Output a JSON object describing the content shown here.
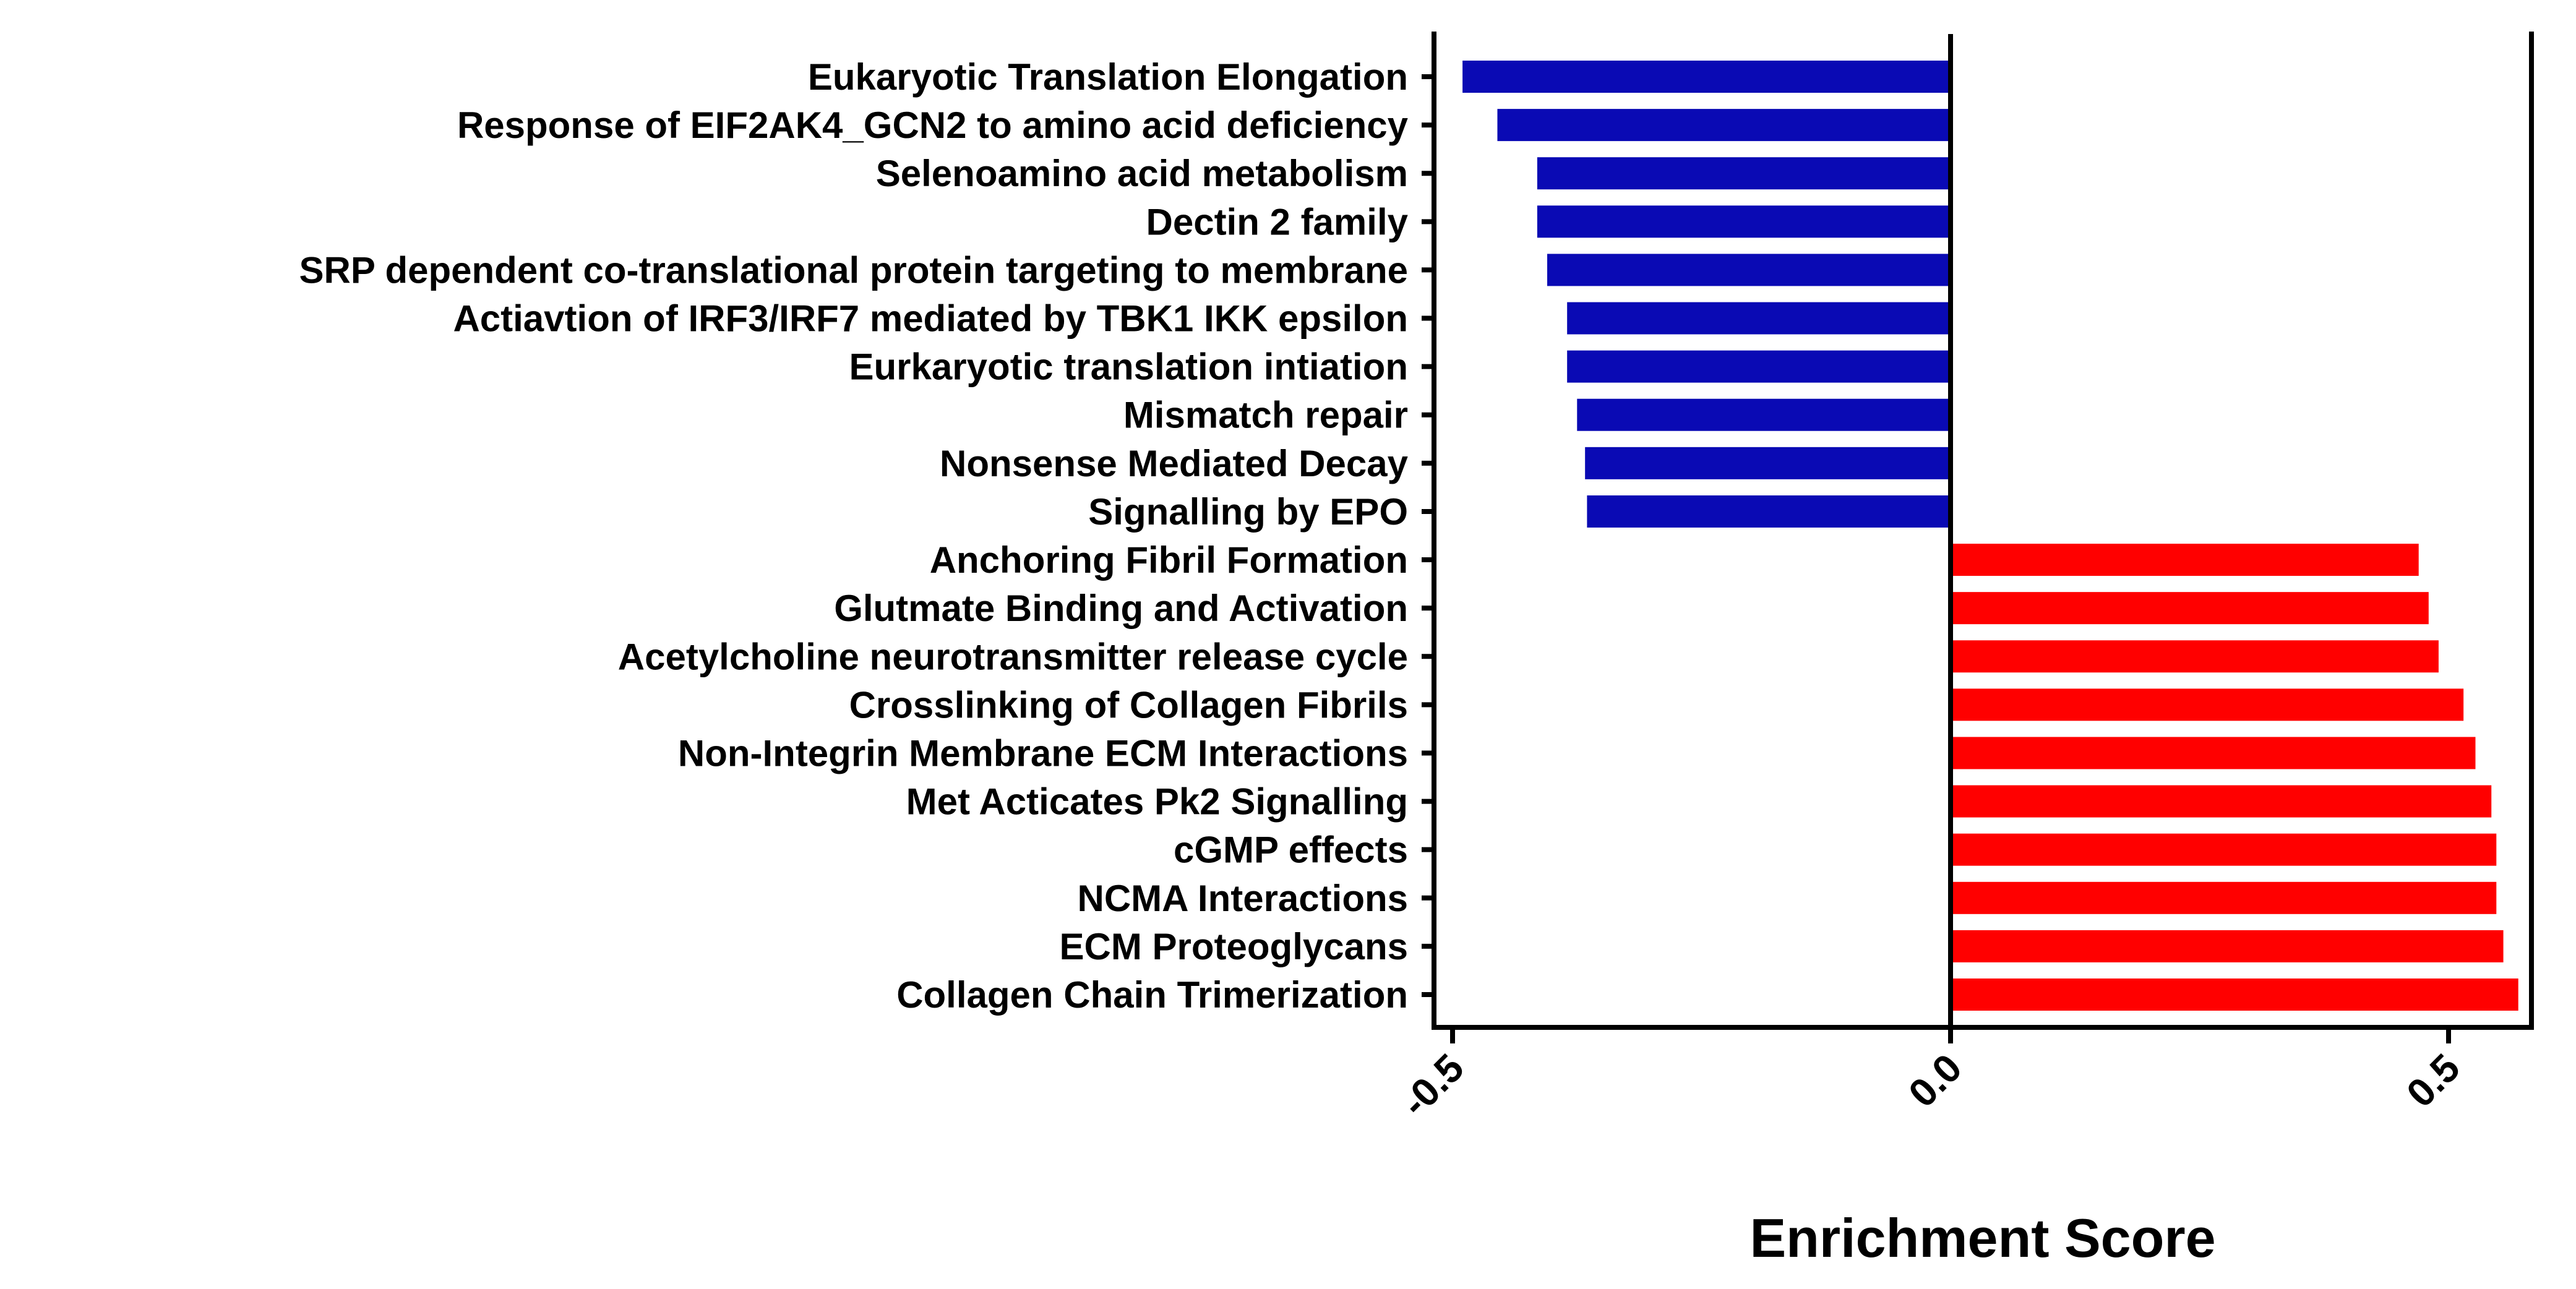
{
  "chart_data": {
    "type": "bar",
    "orientation": "horizontal",
    "title": "",
    "xlabel": "Enrichment Score",
    "ylabel": "",
    "xlim": [
      -0.5,
      0.58
    ],
    "xticks": [
      -0.5,
      0.0,
      0.5
    ],
    "xtick_labels": [
      "-0.5",
      "0.0",
      "0.5"
    ],
    "grid": false,
    "legend": "none",
    "colors": {
      "negative": "#0a0ab4",
      "positive": "#ff0000",
      "axis": "#000000"
    },
    "categories": [
      "Eukaryotic Translation Elongation",
      "Response of EIF2AK4_GCN2 to amino acid deficiency",
      "Selenoamino acid metabolism",
      "Dectin 2 family",
      "SRP dependent co-translational protein targeting to membrane",
      "Actiavtion of IRF3/IRF7 mediated by TBK1 IKK epsilon",
      "Eurkaryotic translation intiation",
      "Mismatch repair",
      "Nonsense Mediated Decay",
      "Signalling by EPO",
      "Anchoring Fibril Formation",
      "Glutmate Binding and Activation",
      "Acetylcholine neurotransmitter release cycle",
      "Crosslinking of Collagen Fibrils",
      "Non-Integrin Membrane ECM Interactions",
      "Met Acticates Pk2 Signalling",
      "cGMP effects",
      "NCMA Interactions",
      "ECM Proteoglycans",
      "Collagen Chain Trimerization"
    ],
    "values": [
      -0.49,
      -0.455,
      -0.415,
      -0.415,
      -0.405,
      -0.385,
      -0.385,
      -0.375,
      -0.367,
      -0.365,
      0.47,
      0.48,
      0.49,
      0.515,
      0.527,
      0.543,
      0.548,
      0.548,
      0.555,
      0.57
    ]
  }
}
